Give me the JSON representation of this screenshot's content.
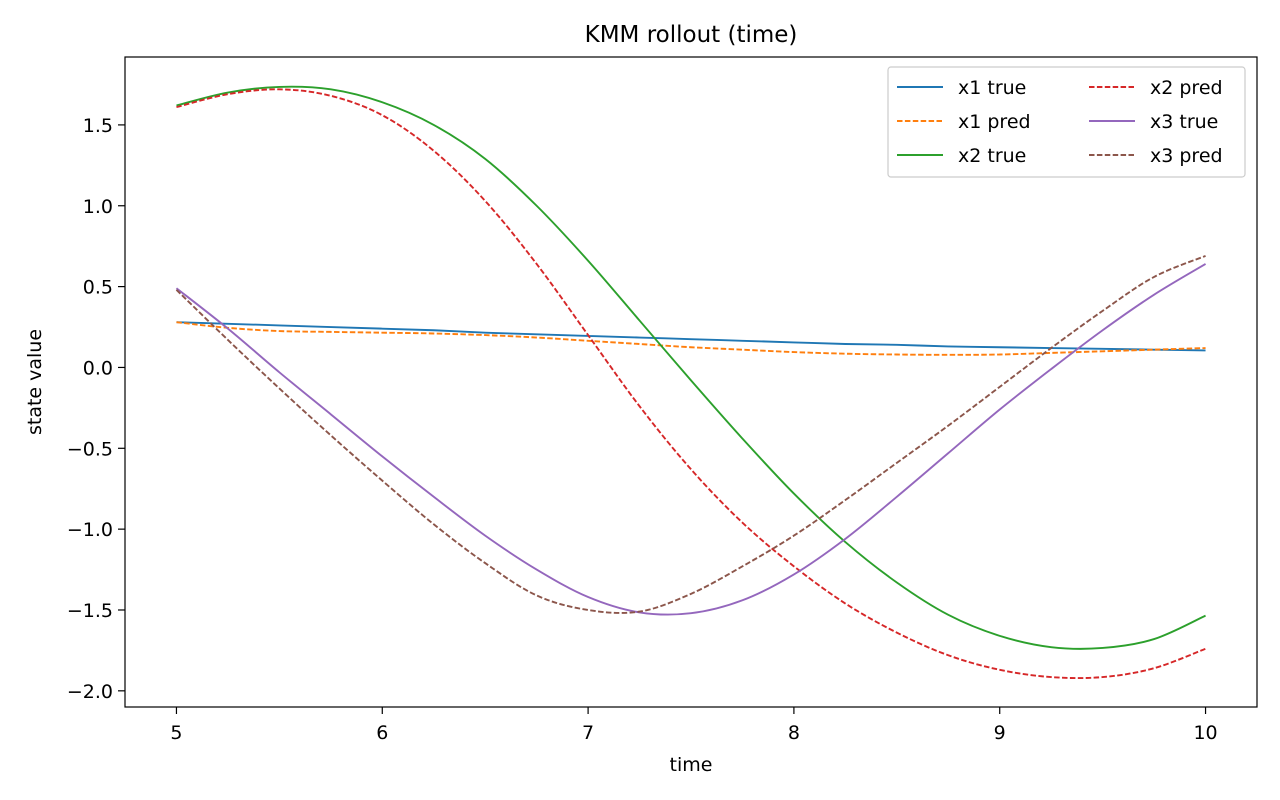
{
  "chart_data": {
    "type": "line",
    "title": "KMM rollout (time)",
    "xlabel": "time",
    "ylabel": "state value",
    "xlim": [
      4.75,
      10.25
    ],
    "ylim": [
      -2.1,
      1.92
    ],
    "xticks": [
      5,
      6,
      7,
      8,
      9,
      10
    ],
    "xtick_labels": [
      "5",
      "6",
      "7",
      "8",
      "9",
      "10"
    ],
    "yticks": [
      1.5,
      1.0,
      0.5,
      0.0,
      -0.5,
      -1.0,
      -1.5,
      -2.0
    ],
    "ytick_labels": [
      "1.5",
      "1.0",
      "0.5",
      "0.0",
      "−0.5",
      "−1.0",
      "−1.5",
      "−2.0"
    ],
    "grid": false,
    "legend_position": "top-right",
    "legend_columns": 2,
    "x": [
      5.0,
      5.25,
      5.5,
      5.75,
      6.0,
      6.25,
      6.5,
      6.75,
      7.0,
      7.25,
      7.5,
      7.75,
      8.0,
      8.25,
      8.5,
      8.75,
      9.0,
      9.25,
      9.5,
      9.75,
      10.0
    ],
    "series": [
      {
        "name": "x1 true",
        "color": "#1f77b4",
        "style": "solid",
        "values": [
          0.28,
          0.27,
          0.26,
          0.25,
          0.24,
          0.23,
          0.215,
          0.205,
          0.195,
          0.185,
          0.175,
          0.165,
          0.155,
          0.145,
          0.14,
          0.13,
          0.125,
          0.12,
          0.115,
          0.11,
          0.105
        ]
      },
      {
        "name": "x1 pred",
        "color": "#ff7f0e",
        "style": "dashed",
        "values": [
          0.28,
          0.245,
          0.225,
          0.22,
          0.215,
          0.21,
          0.2,
          0.185,
          0.165,
          0.145,
          0.125,
          0.11,
          0.095,
          0.085,
          0.08,
          0.078,
          0.08,
          0.09,
          0.1,
          0.11,
          0.12
        ]
      },
      {
        "name": "x2 true",
        "color": "#2ca02c",
        "style": "solid",
        "values": [
          1.62,
          1.7,
          1.735,
          1.72,
          1.64,
          1.5,
          1.29,
          1.0,
          0.66,
          0.29,
          -0.08,
          -0.44,
          -0.78,
          -1.08,
          -1.33,
          -1.53,
          -1.66,
          -1.73,
          -1.735,
          -1.68,
          -1.535
        ]
      },
      {
        "name": "x2 pred",
        "color": "#d62728",
        "style": "dashed",
        "values": [
          1.61,
          1.69,
          1.72,
          1.68,
          1.56,
          1.34,
          1.03,
          0.64,
          0.2,
          -0.24,
          -0.63,
          -0.96,
          -1.23,
          -1.46,
          -1.64,
          -1.78,
          -1.87,
          -1.915,
          -1.915,
          -1.86,
          -1.74
        ]
      },
      {
        "name": "x3 true",
        "color": "#9467bd",
        "style": "solid",
        "values": [
          0.49,
          0.24,
          -0.03,
          -0.29,
          -0.55,
          -0.8,
          -1.04,
          -1.25,
          -1.42,
          -1.515,
          -1.52,
          -1.44,
          -1.28,
          -1.06,
          -0.8,
          -0.53,
          -0.26,
          -0.01,
          0.23,
          0.45,
          0.64
        ]
      },
      {
        "name": "x3 pred",
        "color": "#8c564b",
        "style": "dashed",
        "values": [
          0.48,
          0.17,
          -0.13,
          -0.42,
          -0.7,
          -0.97,
          -1.21,
          -1.41,
          -1.5,
          -1.51,
          -1.4,
          -1.23,
          -1.04,
          -0.82,
          -0.59,
          -0.36,
          -0.12,
          0.12,
          0.35,
          0.56,
          0.69
        ]
      }
    ]
  }
}
